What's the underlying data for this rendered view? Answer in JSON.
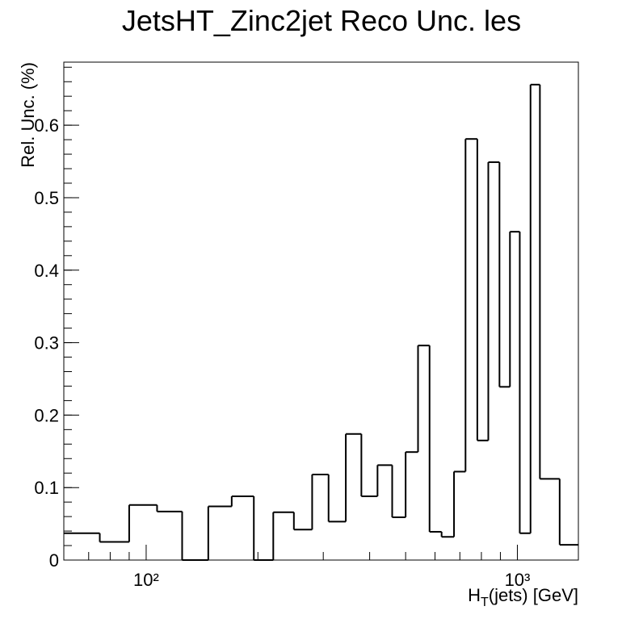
{
  "chart_data": {
    "type": "histogram",
    "title": "JetsHT_Zinc2jet Reco Unc. les",
    "y_label": "Rel. Unc. (%)",
    "x_label": [
      "H",
      "T",
      "(jets) [GeV]"
    ],
    "bins": [
      60,
      75,
      90,
      107,
      125,
      147,
      170,
      195,
      220,
      250,
      280,
      310,
      345,
      380,
      420,
      460,
      500,
      540,
      580,
      625,
      675,
      725,
      780,
      835,
      895,
      955,
      1015,
      1085,
      1150,
      1300,
      1460
    ],
    "values": [
      0.037,
      0.025,
      0.076,
      0.067,
      0,
      0.074,
      0.088,
      0,
      0.066,
      0.042,
      0.118,
      0.053,
      0.174,
      0.088,
      0.131,
      0.059,
      0.149,
      0.296,
      0.039,
      0.032,
      0.122,
      0.581,
      0.165,
      0.549,
      0.239,
      0.453,
      0.037,
      0.656,
      0.112,
      0.021
    ],
    "color": "#000000",
    "xlog": true,
    "xlim": [
      60,
      1460
    ],
    "xticks": [
      {
        "value": 100,
        "label": "10²"
      },
      {
        "value": 1000,
        "label": "10³"
      }
    ],
    "ylim": [
      0,
      0.687
    ],
    "yticks": [
      0,
      0.1,
      0.2,
      0.3,
      0.4,
      0.5,
      0.6
    ]
  }
}
